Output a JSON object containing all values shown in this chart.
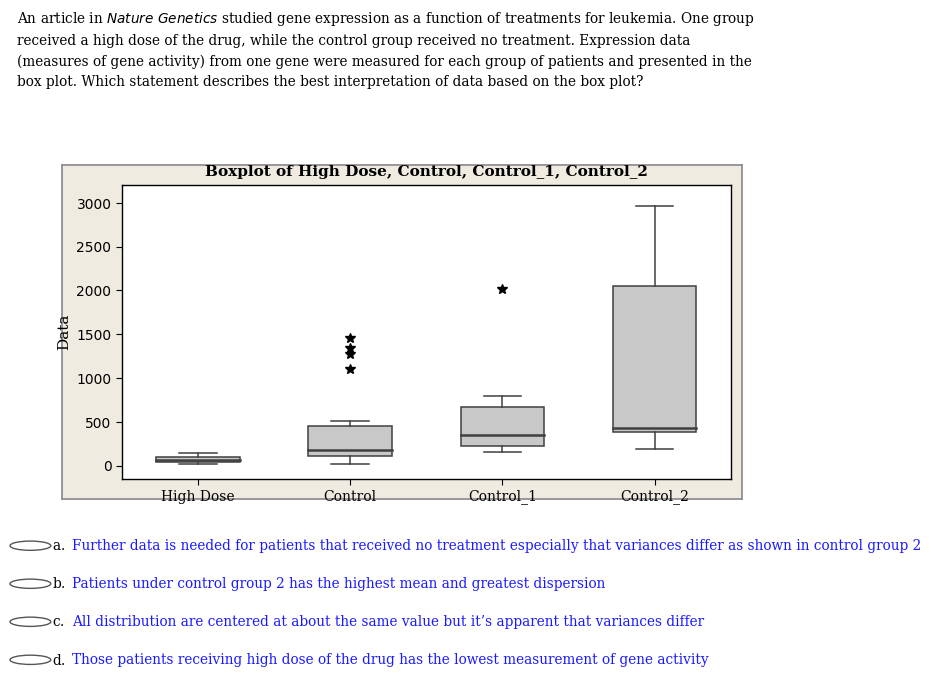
{
  "title": "Boxplot of High Dose, Control, Control_1, Control_2",
  "ylabel": "Data",
  "categories": [
    "High Dose",
    "Control",
    "Control_1",
    "Control_2"
  ],
  "panel_bg_color": "#f0ebe0",
  "plot_bg_color": "#ffffff",
  "box_color": "#c8c8c8",
  "median_color": "#404040",
  "whisker_color": "#404040",
  "flier_color": "#000000",
  "ylim": [
    -150,
    3200
  ],
  "yticks": [
    0,
    500,
    1000,
    1500,
    2000,
    2500,
    3000
  ],
  "groups": {
    "High Dose": {
      "q1": 45,
      "median": 70,
      "q3": 105,
      "whislo": 15,
      "whishi": 140,
      "fliers": []
    },
    "Control": {
      "q1": 115,
      "median": 175,
      "q3": 455,
      "whislo": 25,
      "whishi": 505,
      "fliers": [
        1100,
        1280,
        1340,
        1460
      ]
    },
    "Control_1": {
      "q1": 225,
      "median": 355,
      "q3": 675,
      "whislo": 155,
      "whishi": 800,
      "fliers": [
        2020
      ]
    },
    "Control_2": {
      "q1": 385,
      "median": 425,
      "q3": 2050,
      "whislo": 195,
      "whishi": 2960,
      "fliers": []
    }
  },
  "option_a": "Further data is needed for patients that received no treatment especially that variances differ as shown in control group 2",
  "option_b": "Patients under control group 2 has the highest mean and greatest dispersion",
  "option_c": "All distribution are centered at about the same value but it’s apparent that variances differ",
  "option_d": "Those patients receiving high dose of the drug has the lowest measurement of gene activity",
  "option_color": "#1a1aff",
  "text_color": "#000000",
  "title_fontsize": 11,
  "axis_fontsize": 10,
  "para_fontsize": 9.8,
  "option_fontsize": 9.8
}
